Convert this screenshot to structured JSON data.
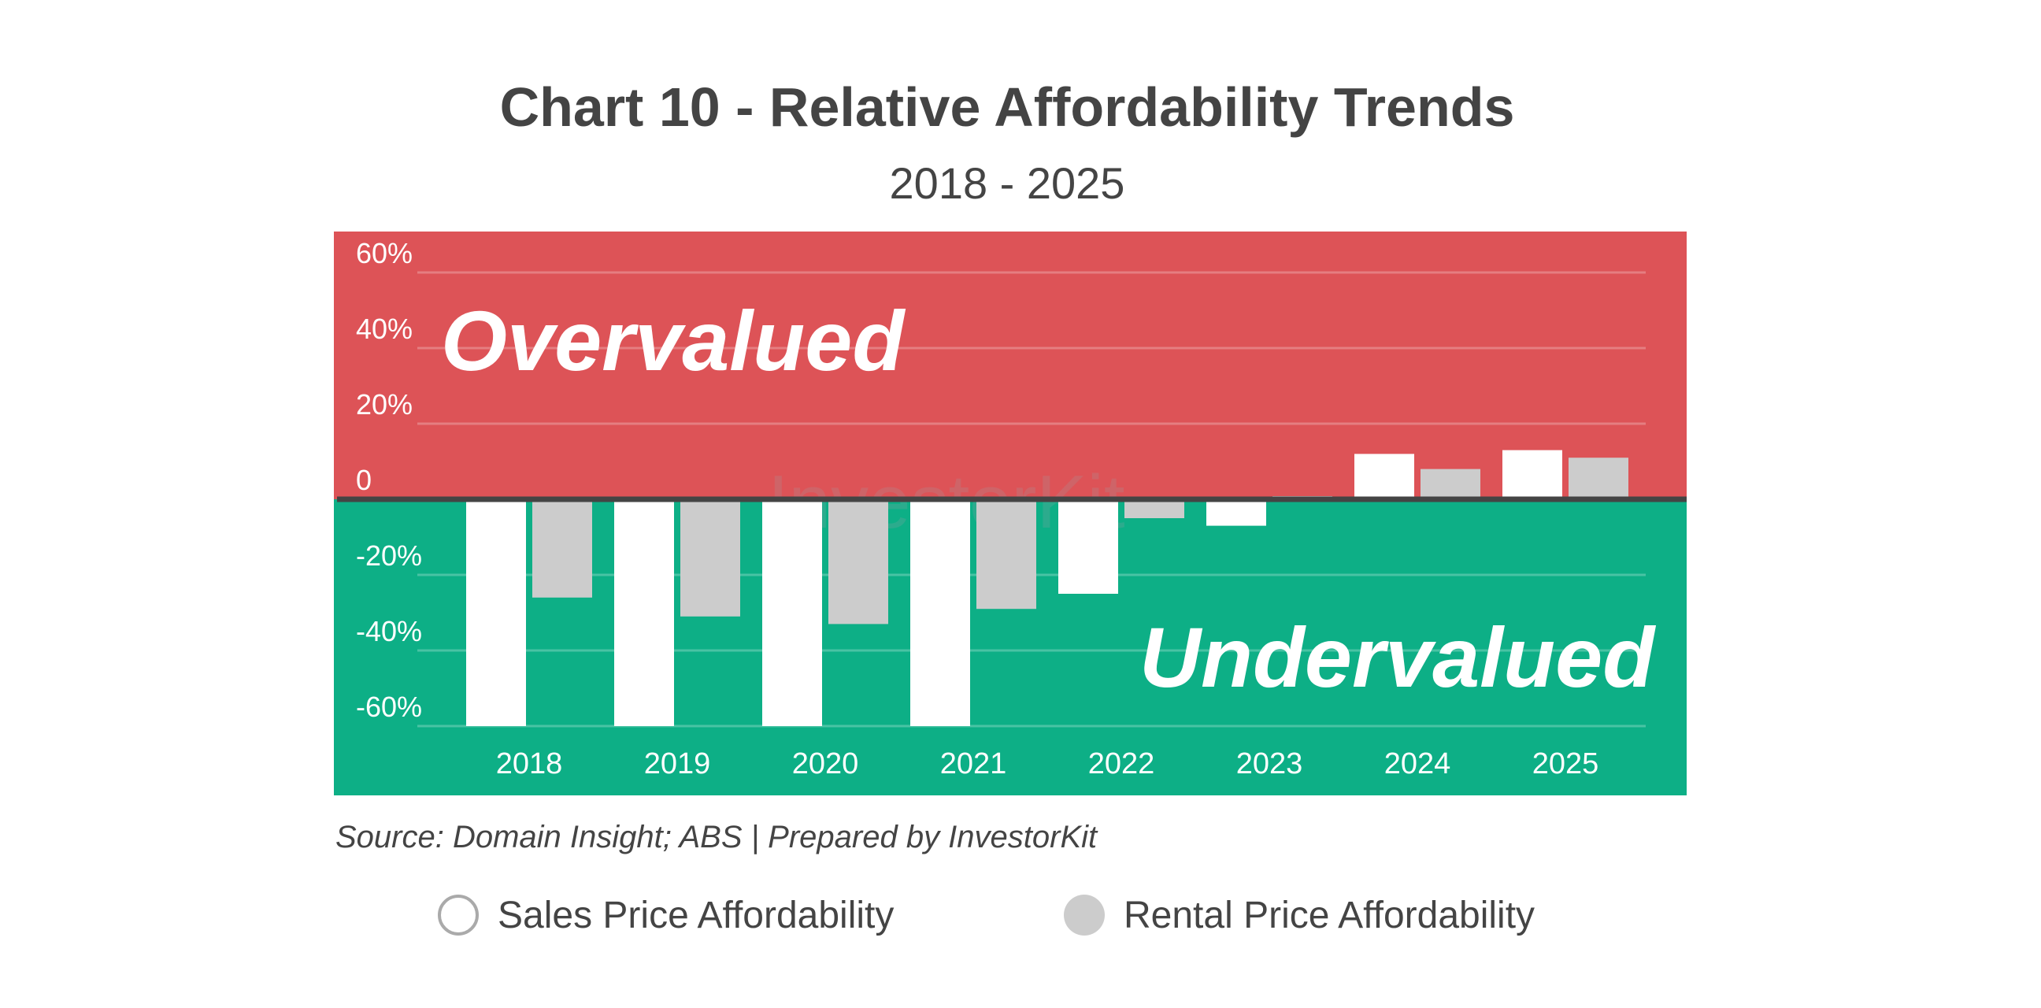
{
  "chart_data": {
    "type": "bar",
    "title": "Chart 10 - Relative Affordability Trends",
    "subtitle": "2018 - 2025",
    "categories": [
      "2018",
      "2019",
      "2020",
      "2021",
      "2022",
      "2023",
      "2024",
      "2025"
    ],
    "series": [
      {
        "name": "Sales Price Affordability",
        "color": "#ffffff",
        "values": [
          -60,
          -60,
          -60,
          -60,
          -25,
          -7,
          12,
          13
        ]
      },
      {
        "name": "Rental Price Affordability",
        "color": "#cccccc",
        "values": [
          -26,
          -31,
          -33,
          -29,
          -5,
          0,
          8,
          11
        ]
      }
    ],
    "ylim": [
      -60,
      60
    ],
    "yticks": [
      {
        "value": 60,
        "label": "60%"
      },
      {
        "value": 40,
        "label": "40%"
      },
      {
        "value": 20,
        "label": "20%"
      },
      {
        "value": 0,
        "label": "0"
      },
      {
        "value": -20,
        "label": "-20%"
      },
      {
        "value": -40,
        "label": "-40%"
      },
      {
        "value": -60,
        "label": "-60%"
      }
    ],
    "grid": true,
    "zones": {
      "over": {
        "label": "Overvalued",
        "color": "#dd5357"
      },
      "under": {
        "label": "Undervalued",
        "color": "#0daf86"
      }
    },
    "zero_line_color": "#444444",
    "legend_position": "bottom",
    "source": "Source: Domain Insight; ABS | Prepared by InvestorKit",
    "watermark": "InvestorKit"
  }
}
